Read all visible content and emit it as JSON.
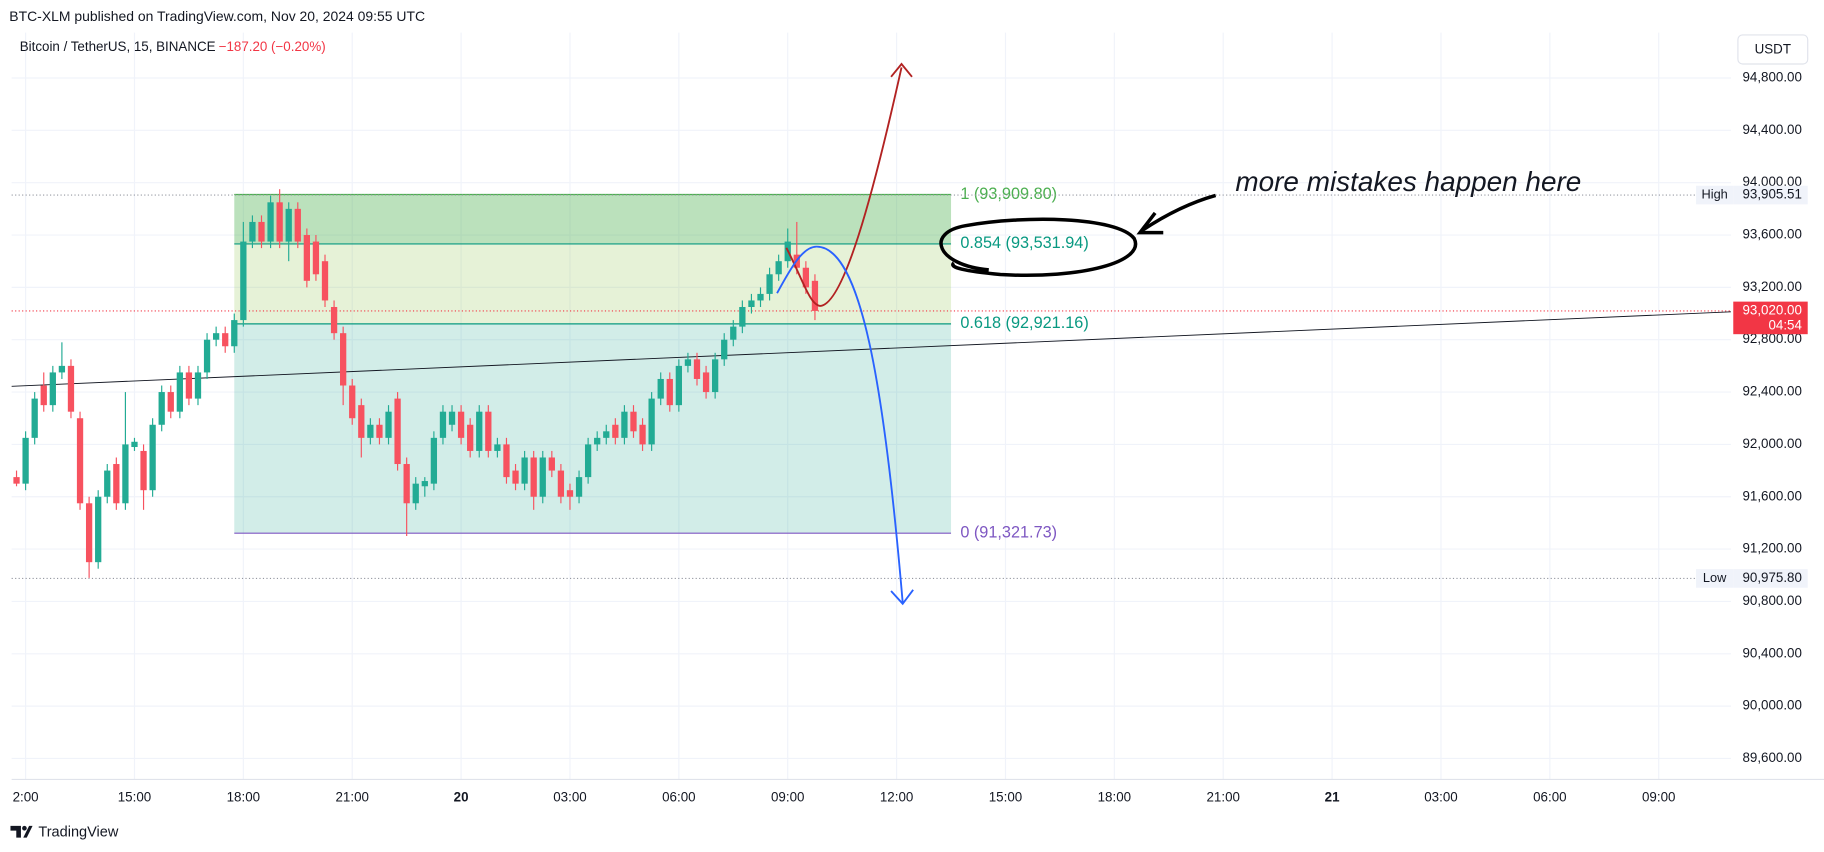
{
  "header": {
    "published": "BTC-XLM published on TradingView.com, Nov 20, 2024 09:55 UTC",
    "symbol": "Bitcoin / TetherUS, 15, BINANCE",
    "change": "−187.20 (−0.20%)"
  },
  "currency": "USDT",
  "footer": "TradingView",
  "chart_data": {
    "type": "candlestick",
    "up_color": "#22ab94",
    "down_color": "#f7525f",
    "xlim": [
      11.615,
      58.99
    ],
    "ylim": [
      89440,
      95147
    ],
    "grid": true,
    "xticks": [
      {
        "value": 12,
        "label": "2:00"
      },
      {
        "value": 15,
        "label": "15:00"
      },
      {
        "value": 18,
        "label": "18:00"
      },
      {
        "value": 21,
        "label": "21:00"
      },
      {
        "value": 24,
        "label": "20"
      },
      {
        "value": 27,
        "label": "03:00"
      },
      {
        "value": 30,
        "label": "06:00"
      },
      {
        "value": 33,
        "label": "09:00"
      },
      {
        "value": 36,
        "label": "12:00"
      },
      {
        "value": 39,
        "label": "15:00"
      },
      {
        "value": 42,
        "label": "18:00"
      },
      {
        "value": 45,
        "label": "21:00"
      },
      {
        "value": 48,
        "label": "21"
      },
      {
        "value": 51,
        "label": "03:00"
      },
      {
        "value": 54,
        "label": "06:00"
      },
      {
        "value": 57,
        "label": "09:00"
      }
    ],
    "yticks": [
      {
        "value": 89600,
        "label": "89,600.00"
      },
      {
        "value": 90000,
        "label": "90,000.00"
      },
      {
        "value": 90400,
        "label": "90,400.00"
      },
      {
        "value": 90800,
        "label": "90,800.00"
      },
      {
        "value": 91200,
        "label": "91,200.00"
      },
      {
        "value": 91600,
        "label": "91,600.00"
      },
      {
        "value": 92000,
        "label": "92,000.00"
      },
      {
        "value": 92400,
        "label": "92,400.00"
      },
      {
        "value": 92800,
        "label": "92,800.00"
      },
      {
        "value": 93200,
        "label": "93,200.00"
      },
      {
        "value": 93600,
        "label": "93,600.00"
      },
      {
        "value": 94000,
        "label": "94,000.00"
      },
      {
        "value": 94400,
        "label": "94,400.00"
      },
      {
        "value": 94800,
        "label": "94,800.00"
      }
    ],
    "x": [
      11.75,
      12,
      12.25,
      12.5,
      12.75,
      13,
      13.25,
      13.5,
      13.75,
      14,
      14.25,
      14.5,
      14.75,
      15,
      15.25,
      15.5,
      15.75,
      16,
      16.25,
      16.5,
      16.75,
      17,
      17.25,
      17.5,
      17.75,
      18,
      18.25,
      18.5,
      18.75,
      19,
      19.25,
      19.5,
      19.75,
      20,
      20.25,
      20.5,
      20.75,
      21,
      21.25,
      21.5,
      21.75,
      22,
      22.25,
      22.5,
      22.75,
      23,
      23.25,
      23.5,
      23.75,
      24,
      24.25,
      24.5,
      24.75,
      25,
      25.25,
      25.5,
      25.75,
      26,
      26.25,
      26.5,
      26.75,
      27,
      27.25,
      27.5,
      27.75,
      28,
      28.25,
      28.5,
      28.75,
      29,
      29.25,
      29.5,
      29.75,
      30,
      30.25,
      30.5,
      30.75,
      31,
      31.25,
      31.5,
      31.75,
      32,
      32.25,
      32.5,
      32.75,
      33,
      33.25,
      33.5,
      33.75
    ],
    "open": [
      91750,
      91700,
      92050,
      92450,
      92300,
      92550,
      92600,
      92200,
      91550,
      91100,
      91600,
      91850,
      91550,
      91980,
      91950,
      91650,
      92150,
      92400,
      92250,
      92550,
      92350,
      92550,
      92800,
      92850,
      92750,
      92950,
      93550,
      93700,
      93550,
      93850,
      93550,
      93800,
      93600,
      93550,
      93400,
      93050,
      92850,
      92450,
      92300,
      92050,
      92150,
      92050,
      92350,
      91850,
      91550,
      91680,
      91700,
      92050,
      92150,
      92250,
      92150,
      91950,
      92250,
      91950,
      92000,
      91800,
      91700,
      91900,
      91600,
      91900,
      91800,
      91650,
      91600,
      91750,
      92000,
      92050,
      92150,
      92050,
      92250,
      92150,
      92000,
      92350,
      92500,
      92300,
      92600,
      92650,
      92550,
      92400,
      92650,
      92800,
      92900,
      93050,
      93100,
      93150,
      93300,
      93400,
      93450,
      93350,
      93250
    ],
    "high": [
      91800,
      92100,
      92400,
      92550,
      92600,
      92780,
      92650,
      92250,
      91600,
      91650,
      91850,
      91900,
      92400,
      92050,
      92000,
      92200,
      92450,
      92450,
      92600,
      92600,
      92600,
      92850,
      92900,
      92900,
      93000,
      93700,
      93750,
      93750,
      93900,
      93950,
      93850,
      93850,
      93650,
      93600,
      93450,
      93100,
      92900,
      92500,
      92350,
      92200,
      92200,
      92300,
      92400,
      91900,
      91750,
      91750,
      92100,
      92300,
      92300,
      92300,
      92200,
      92300,
      92300,
      92050,
      92050,
      91850,
      91950,
      91950,
      91950,
      91950,
      91850,
      91700,
      91800,
      92050,
      92100,
      92150,
      92200,
      92300,
      92300,
      92200,
      92400,
      92550,
      92550,
      92650,
      92700,
      92700,
      92600,
      92700,
      92850,
      92950,
      93100,
      93150,
      93200,
      93350,
      93450,
      93650,
      93700,
      93400,
      93300
    ],
    "low": [
      91680,
      91650,
      92000,
      92250,
      92250,
      92500,
      92200,
      91500,
      90980,
      91050,
      91550,
      91500,
      91500,
      91950,
      91500,
      91600,
      92100,
      92200,
      92200,
      92300,
      92300,
      92500,
      92750,
      92700,
      92700,
      92900,
      93500,
      93500,
      93500,
      93500,
      93400,
      93500,
      93200,
      93250,
      93050,
      92800,
      92300,
      92150,
      91900,
      92000,
      92000,
      92000,
      91800,
      91300,
      91500,
      91600,
      91650,
      92000,
      92100,
      92000,
      91900,
      91900,
      91900,
      91900,
      91700,
      91650,
      91650,
      91500,
      91550,
      91750,
      91550,
      91500,
      91550,
      91700,
      91950,
      92000,
      92000,
      92000,
      92050,
      91950,
      91950,
      92300,
      92250,
      92250,
      92550,
      92450,
      92350,
      92350,
      92600,
      92750,
      92850,
      93000,
      93050,
      93100,
      93250,
      93350,
      93300,
      93150,
      92950
    ],
    "close": [
      91700,
      92050,
      92350,
      92300,
      92550,
      92600,
      92250,
      91550,
      91100,
      91600,
      91800,
      91550,
      92000,
      92020,
      91650,
      92150,
      92400,
      92250,
      92550,
      92350,
      92550,
      92800,
      92850,
      92750,
      92950,
      93550,
      93700,
      93550,
      93850,
      93550,
      93800,
      93550,
      93250,
      93300,
      93100,
      92850,
      92450,
      92200,
      92050,
      92150,
      92050,
      92250,
      91850,
      91550,
      91700,
      91720,
      92050,
      92250,
      92250,
      92050,
      91950,
      92250,
      91950,
      92000,
      91750,
      91700,
      91900,
      91600,
      91900,
      91800,
      91600,
      91600,
      91750,
      92000,
      92050,
      92100,
      92050,
      92250,
      92100,
      92000,
      92350,
      92500,
      92300,
      92600,
      92650,
      92500,
      92400,
      92650,
      92800,
      92900,
      93050,
      93100,
      93150,
      93300,
      93400,
      93550,
      93350,
      93200,
      93020
    ],
    "trendline": {
      "x": [
        11.615,
        58.99
      ],
      "values": [
        92444,
        93013
      ],
      "color": "#131722"
    },
    "fib": {
      "x": [
        17.75,
        37.5
      ],
      "levels": [
        {
          "price": 93909.8,
          "label": "1 (93,909.80)",
          "color": "#4caf50"
        },
        {
          "price": 93531.94,
          "label": "0.854 (93,531.94)",
          "color": "#089981"
        },
        {
          "price": 92921.16,
          "label": "0.618 (92,921.16)",
          "color": "#089981"
        },
        {
          "price": 91321.73,
          "label": "0 (91,321.73)",
          "color": "#7e57c2"
        }
      ],
      "band_colors": [
        "rgba(76,175,80,0.38)",
        "rgba(139,195,74,0.22)",
        "rgba(8,153,129,0.18)"
      ]
    },
    "markers": [
      {
        "name": "High",
        "value": 93905.51,
        "label": "93,905.51"
      },
      {
        "name": "Low",
        "value": 90975.8,
        "label": "90,975.80"
      }
    ],
    "last_price": {
      "value": 93020,
      "label": "93,020.00",
      "countdown": "04:54",
      "color": "#f23645"
    },
    "annotation": "more mistakes happen here"
  }
}
